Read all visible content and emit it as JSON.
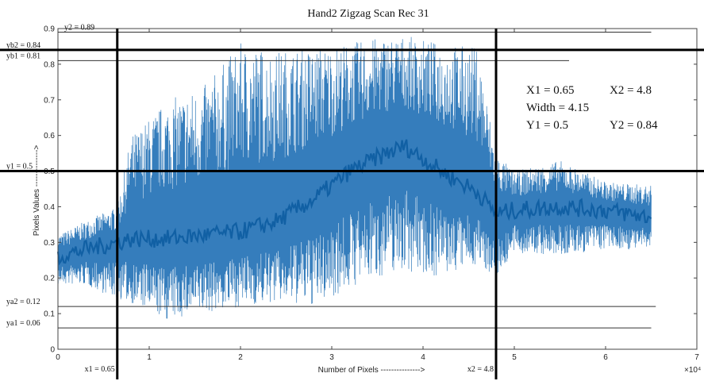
{
  "chart_data": {
    "type": "line",
    "title": "Hand2 Zigzag Scan Rec 31",
    "xlabel": "Number of Pixels  --------------->",
    "ylabel": "Pixels Values  -------------->",
    "xlim": [
      0,
      7
    ],
    "ylim": [
      0,
      0.9
    ],
    "x_exponent_label": "×10⁴",
    "x_ticks": [
      0,
      1,
      2,
      3,
      4,
      5,
      6,
      7
    ],
    "x_tick_labels": [
      "0",
      "1",
      "2",
      "3",
      "4",
      "5",
      "6",
      "7"
    ],
    "y_ticks": [
      0,
      0.1,
      0.2,
      0.3,
      0.4,
      0.5,
      0.6,
      0.7,
      0.8,
      0.9
    ],
    "y_tick_labels": [
      "0",
      "0.1",
      "0.2",
      "0.3",
      "0.4",
      "0.5",
      "0.6",
      "0.7",
      "0.8",
      "0.9"
    ],
    "grid": false,
    "series": [
      {
        "color": "#1f6fb5",
        "x": [
          0,
          0.3,
          0.65,
          0.8,
          1.2,
          1.6,
          2.0,
          2.4,
          2.8,
          3.2,
          3.6,
          3.8,
          4.2,
          4.6,
          4.8,
          5.0,
          5.5,
          6.0,
          6.5
        ],
        "mean": [
          0.26,
          0.28,
          0.3,
          0.31,
          0.31,
          0.32,
          0.33,
          0.36,
          0.42,
          0.5,
          0.55,
          0.57,
          0.5,
          0.44,
          0.38,
          0.39,
          0.4,
          0.39,
          0.37
        ],
        "upper": [
          0.32,
          0.36,
          0.4,
          0.6,
          0.7,
          0.74,
          0.86,
          0.84,
          0.85,
          0.86,
          0.88,
          0.88,
          0.86,
          0.85,
          0.55,
          0.5,
          0.53,
          0.47,
          0.46
        ],
        "lower": [
          0.18,
          0.18,
          0.14,
          0.13,
          0.08,
          0.1,
          0.12,
          0.13,
          0.12,
          0.17,
          0.21,
          0.22,
          0.2,
          0.24,
          0.2,
          0.27,
          0.26,
          0.28,
          0.28
        ]
      }
    ],
    "reference_lines": [
      {
        "label": "y2 = 0.89",
        "y": 0.89,
        "x_start": 0,
        "x_end": 6.5,
        "emphasis": false
      },
      {
        "label": "yb2 = 0.84",
        "y": 0.84,
        "x_start": 0,
        "x_end": 7,
        "emphasis": true
      },
      {
        "label": "yb1 = 0.81",
        "y": 0.81,
        "x_start": 0,
        "x_end": 5.6,
        "emphasis": false
      },
      {
        "label": "y1 = 0.5",
        "y": 0.5,
        "x_start": 0,
        "x_end": 7,
        "emphasis": true
      },
      {
        "label": "ya2 = 0.12",
        "y": 0.12,
        "x_start": 0,
        "x_end": 6.55,
        "emphasis": false
      },
      {
        "label": "ya1 = 0.06",
        "y": 0.06,
        "x_start": 0,
        "x_end": 6.5,
        "emphasis": false
      }
    ],
    "vertical_lines": [
      {
        "label": "x1 = 0.65",
        "x": 0.65
      },
      {
        "label": "x2 = 4.8",
        "x": 4.8
      }
    ],
    "annotation_box": {
      "rows": [
        [
          "X1 = 0.65",
          "X2 = 4.8"
        ],
        [
          "Width = 4.15",
          ""
        ],
        [
          "Y1 = 0.5",
          "Y2 = 0.84"
        ]
      ]
    }
  }
}
